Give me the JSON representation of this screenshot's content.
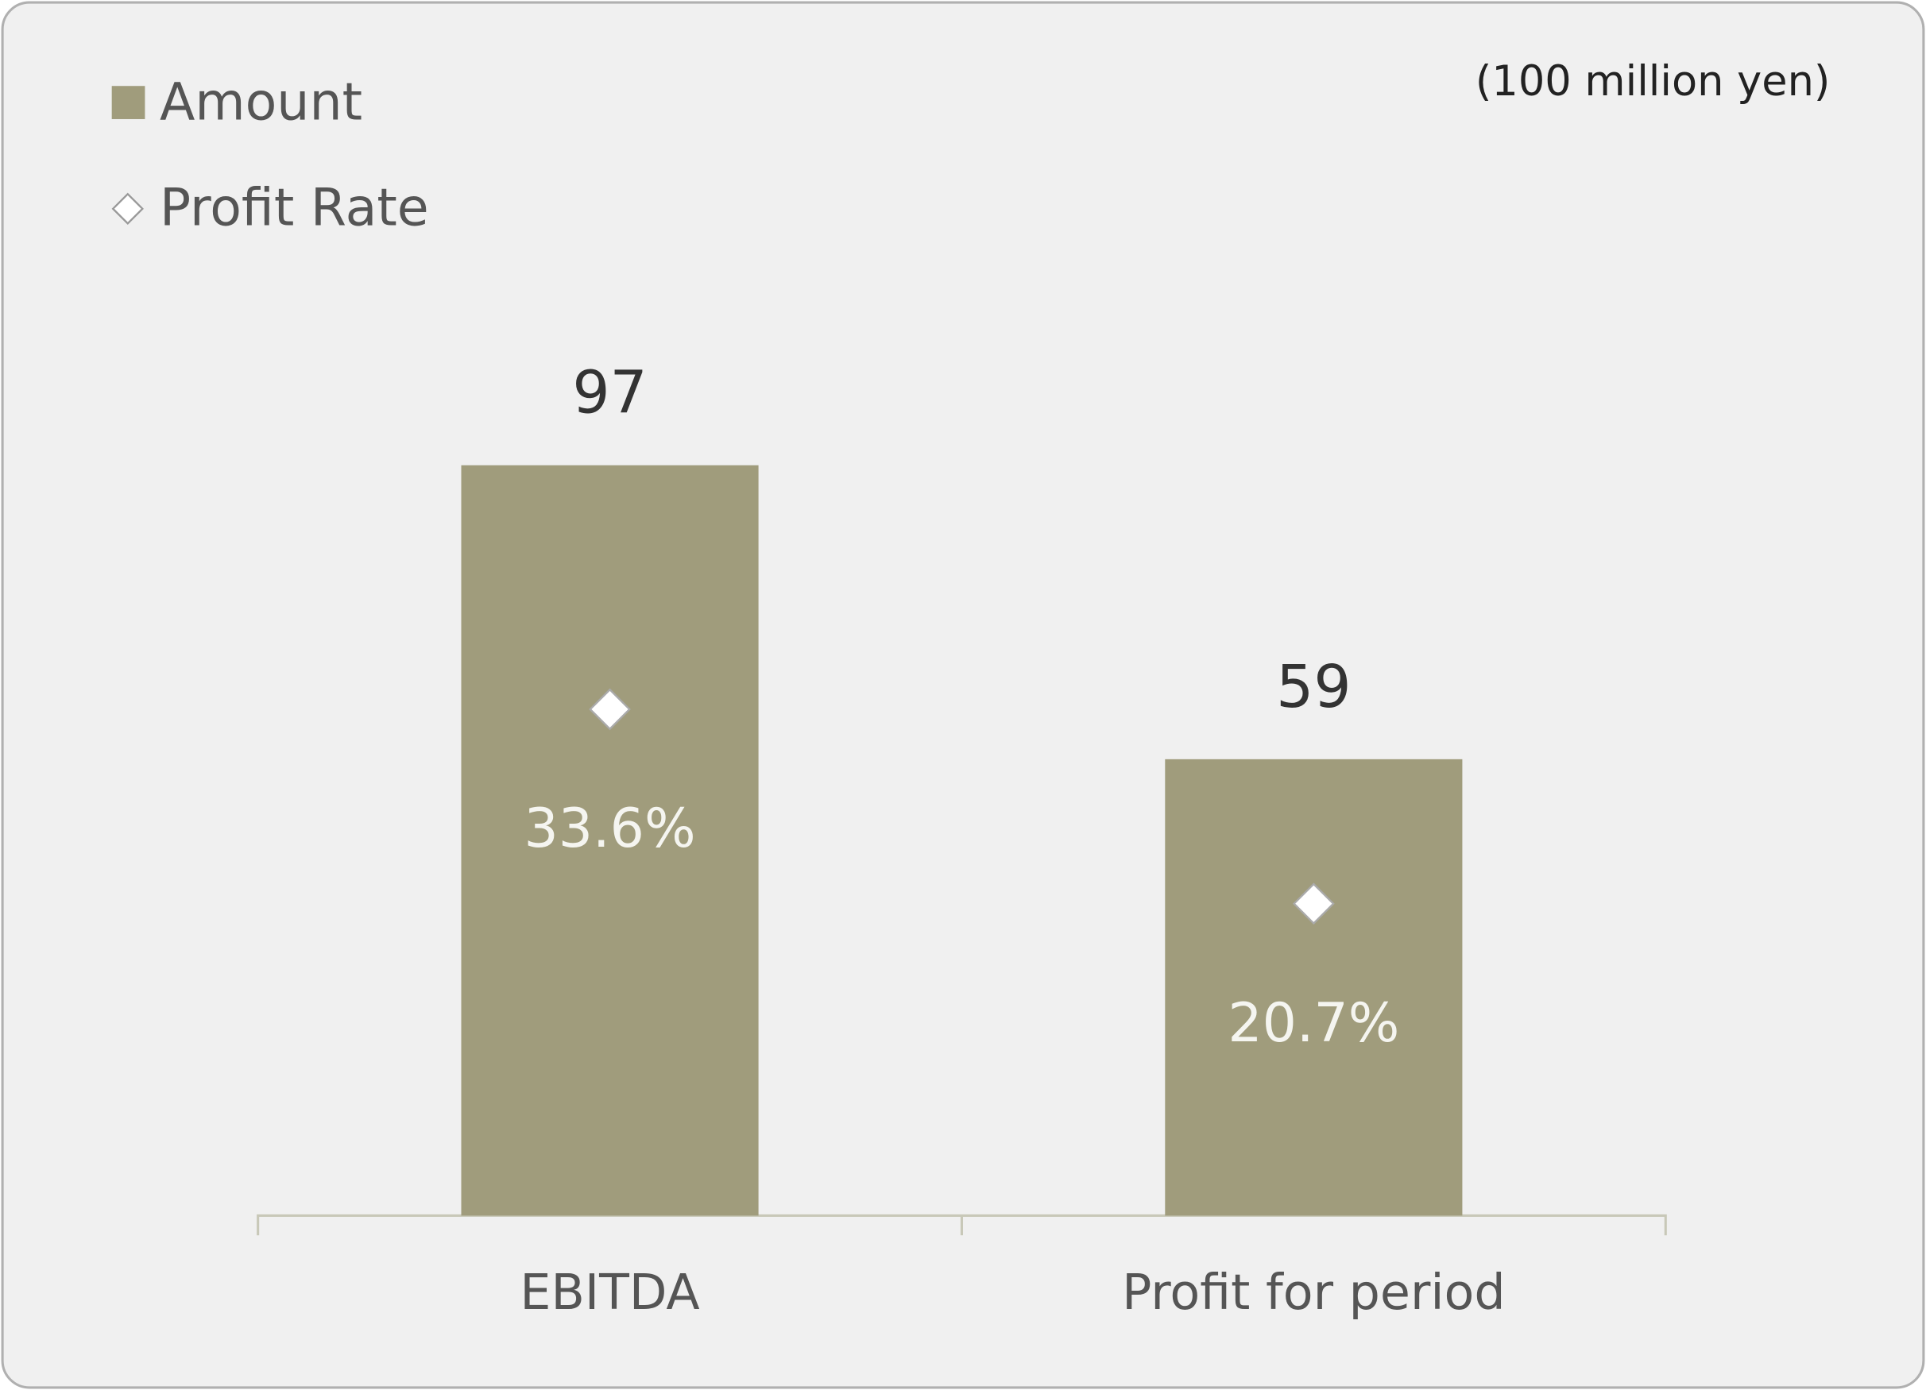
{
  "chart_data": {
    "type": "bar",
    "subtitle": "(100 million yen)",
    "categories": [
      "EBITDA",
      "Profit for period"
    ],
    "series": [
      {
        "name": "Amount",
        "color": "#a09c7c",
        "values": [
          97,
          59
        ]
      },
      {
        "name": "Profit Rate",
        "color": "#ffffff",
        "marker": "diamond",
        "axis": "y2",
        "values": [
          33.6,
          20.7
        ],
        "value_labels": [
          "33.6%",
          "20.7%"
        ]
      }
    ],
    "ylim": [
      0,
      150
    ],
    "y2lim": [
      0,
      77
    ],
    "legend": "top-left",
    "background": "#f0f0f0"
  }
}
